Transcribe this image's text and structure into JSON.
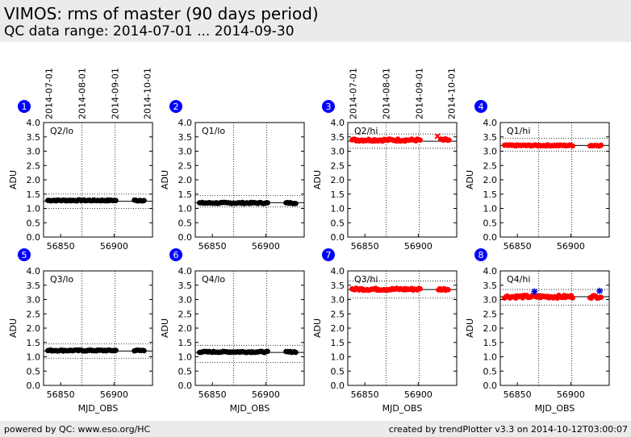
{
  "header": {
    "title": "VIMOS: rms of master (90 days period)",
    "subtitle": "QC data range: 2014-07-01 ... 2014-09-30"
  },
  "footer": {
    "left": "powered by QC: www.eso.org/HC",
    "right": "created by trendPlotter v3.3 on 2014-10-12T03:00:07"
  },
  "colors": {
    "lo_series": "#000000",
    "hi_series": "#ff0000",
    "outlier": "#0000cc",
    "badge": "#0000ff",
    "background_band": "#ebebeb"
  },
  "chart_data": [
    {
      "type": "scatter",
      "panel": "1",
      "quadrant_label": "Q2/lo",
      "xlabel": "MJD_OBS",
      "ylabel": "ADU",
      "xlim": [
        56834,
        56936
      ],
      "ylim": [
        0,
        4
      ],
      "xticks": [
        "56850",
        "56900"
      ],
      "yticks": [
        "0.0",
        "0.5",
        "1.0",
        "1.5",
        "2.0",
        "2.5",
        "3.0",
        "3.5",
        "4.0"
      ],
      "top_date_ticks": [
        {
          "label": "2014-07-01",
          "x": 56839
        },
        {
          "label": "2014-08-01",
          "x": 56870
        },
        {
          "label": "2014-09-01",
          "x": 56901
        },
        {
          "label": "2014-10-01",
          "x": 56931
        }
      ],
      "ref_line": 1.25,
      "limits": [
        1.0,
        1.5
      ],
      "series": [
        {
          "color": "lo",
          "x_range": [
            56838,
            56902
          ],
          "x_range2": [
            56919,
            56929
          ],
          "y": 1.28,
          "jitter": 0.02
        }
      ],
      "outliers": []
    },
    {
      "type": "scatter",
      "panel": "2",
      "quadrant_label": "Q1/lo",
      "xlabel": "MJD_OBS",
      "ylabel": "ADU",
      "xlim": [
        56834,
        56936
      ],
      "ylim": [
        0,
        4
      ],
      "xticks": [
        "56850",
        "56900"
      ],
      "yticks": [
        "0.0",
        "0.5",
        "1.0",
        "1.5",
        "2.0",
        "2.5",
        "3.0",
        "3.5",
        "4.0"
      ],
      "top_date_ticks": [],
      "ref_line": 1.2,
      "limits": [
        1.05,
        1.45
      ],
      "series": [
        {
          "color": "lo",
          "x_range": [
            56838,
            56902
          ],
          "x_range2": [
            56919,
            56929
          ],
          "y": 1.19,
          "jitter": 0.02
        }
      ],
      "outliers": []
    },
    {
      "type": "scatter",
      "panel": "3",
      "quadrant_label": "Q2/hi",
      "xlabel": "MJD_OBS",
      "ylabel": "ADU",
      "xlim": [
        56834,
        56936
      ],
      "ylim": [
        0,
        4
      ],
      "xticks": [
        "56850",
        "56900"
      ],
      "yticks": [
        "0.0",
        "0.5",
        "1.0",
        "1.5",
        "2.0",
        "2.5",
        "3.0",
        "3.5",
        "4.0"
      ],
      "top_date_ticks": [
        {
          "label": "2014-07-01",
          "x": 56839
        },
        {
          "label": "2014-08-01",
          "x": 56870
        },
        {
          "label": "2014-09-01",
          "x": 56901
        },
        {
          "label": "2014-10-01",
          "x": 56931
        }
      ],
      "ref_line": 3.35,
      "limits": [
        3.1,
        3.6
      ],
      "series": [
        {
          "color": "hi",
          "x_range": [
            56838,
            56902
          ],
          "x_range2": [
            56921,
            56929
          ],
          "y": 3.39,
          "jitter": 0.04
        }
      ],
      "outliers": [
        {
          "x": 56918,
          "y": 3.52,
          "marker": "x",
          "color": "hi"
        }
      ]
    },
    {
      "type": "scatter",
      "panel": "4",
      "quadrant_label": "Q1/hi",
      "xlabel": "MJD_OBS",
      "ylabel": "ADU",
      "xlim": [
        56834,
        56936
      ],
      "ylim": [
        0,
        4
      ],
      "xticks": [
        "56850",
        "56900"
      ],
      "yticks": [
        "0.0",
        "0.5",
        "1.0",
        "1.5",
        "2.0",
        "2.5",
        "3.0",
        "3.5",
        "4.0"
      ],
      "top_date_ticks": [],
      "ref_line": 3.2,
      "limits": [
        3.0,
        3.45
      ],
      "series": [
        {
          "color": "hi",
          "x_range": [
            56838,
            56902
          ],
          "x_range2": [
            56918,
            56929
          ],
          "y": 3.2,
          "jitter": 0.02
        }
      ],
      "outliers": []
    },
    {
      "type": "scatter",
      "panel": "5",
      "quadrant_label": "Q3/lo",
      "xlabel": "MJD_OBS",
      "ylabel": "ADU",
      "xlim": [
        56834,
        56936
      ],
      "ylim": [
        0,
        4
      ],
      "xticks": [
        "56850",
        "56900"
      ],
      "yticks": [
        "0.0",
        "0.5",
        "1.0",
        "1.5",
        "2.0",
        "2.5",
        "3.0",
        "3.5",
        "4.0"
      ],
      "top_date_ticks": [],
      "ref_line": 1.2,
      "limits": [
        0.95,
        1.45
      ],
      "series": [
        {
          "color": "lo",
          "x_range": [
            56838,
            56902
          ],
          "x_range2": [
            56919,
            56929
          ],
          "y": 1.22,
          "jitter": 0.02
        }
      ],
      "outliers": []
    },
    {
      "type": "scatter",
      "panel": "6",
      "quadrant_label": "Q4/lo",
      "xlabel": "MJD_OBS",
      "ylabel": "ADU",
      "xlim": [
        56834,
        56936
      ],
      "ylim": [
        0,
        4
      ],
      "xticks": [
        "56850",
        "56900"
      ],
      "yticks": [
        "0.0",
        "0.5",
        "1.0",
        "1.5",
        "2.0",
        "2.5",
        "3.0",
        "3.5",
        "4.0"
      ],
      "top_date_ticks": [],
      "ref_line": 1.15,
      "limits": [
        0.8,
        1.4
      ],
      "series": [
        {
          "color": "lo",
          "x_range": [
            56838,
            56902
          ],
          "x_range2": [
            56919,
            56929
          ],
          "y": 1.17,
          "jitter": 0.02
        }
      ],
      "outliers": []
    },
    {
      "type": "scatter",
      "panel": "7",
      "quadrant_label": "Q3/hi",
      "xlabel": "MJD_OBS",
      "ylabel": "ADU",
      "xlim": [
        56834,
        56936
      ],
      "ylim": [
        0,
        4
      ],
      "xticks": [
        "56850",
        "56900"
      ],
      "yticks": [
        "0.0",
        "0.5",
        "1.0",
        "1.5",
        "2.0",
        "2.5",
        "3.0",
        "3.5",
        "4.0"
      ],
      "top_date_ticks": [],
      "ref_line": 3.35,
      "limits": [
        3.05,
        3.65
      ],
      "series": [
        {
          "color": "hi",
          "x_range": [
            56838,
            56902
          ],
          "x_range2": [
            56919,
            56929
          ],
          "y": 3.36,
          "jitter": 0.04
        }
      ],
      "outliers": []
    },
    {
      "type": "scatter",
      "panel": "8",
      "quadrant_label": "Q4/hi",
      "xlabel": "MJD_OBS",
      "ylabel": "ADU",
      "xlim": [
        56834,
        56936
      ],
      "ylim": [
        0,
        4
      ],
      "xticks": [
        "56850",
        "56900"
      ],
      "yticks": [
        "0.0",
        "0.5",
        "1.0",
        "1.5",
        "2.0",
        "2.5",
        "3.0",
        "3.5",
        "4.0"
      ],
      "top_date_ticks": [],
      "ref_line": 3.1,
      "limits": [
        2.8,
        3.35
      ],
      "series": [
        {
          "color": "hi",
          "x_range": [
            56838,
            56902
          ],
          "x_range2": [
            56918,
            56929
          ],
          "y": 3.1,
          "jitter": 0.05
        }
      ],
      "outliers": [
        {
          "x": 56866,
          "y": 3.28,
          "marker": "star",
          "color": "outlier"
        },
        {
          "x": 56927,
          "y": 3.3,
          "marker": "star",
          "color": "outlier"
        }
      ]
    }
  ]
}
